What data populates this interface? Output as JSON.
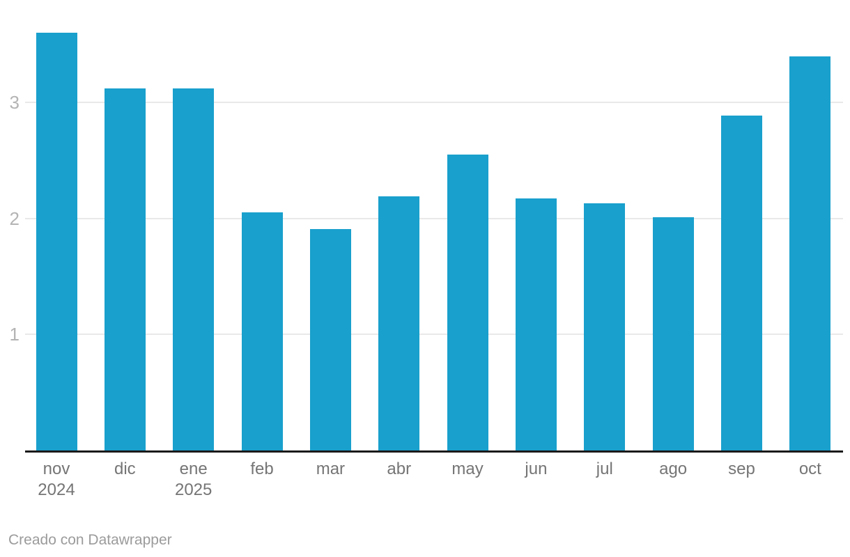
{
  "chart_data": {
    "type": "bar",
    "title": "",
    "xlabel": "",
    "ylabel": "",
    "categories": [
      "nov",
      "dic",
      "ene",
      "feb",
      "mar",
      "abr",
      "may",
      "jun",
      "jul",
      "ago",
      "sep",
      "oct"
    ],
    "sublabels": [
      "2024",
      "",
      "2025",
      "",
      "",
      "",
      "",
      "",
      "",
      "",
      "",
      ""
    ],
    "values": [
      3.6,
      3.12,
      3.12,
      2.05,
      1.91,
      2.19,
      2.55,
      2.17,
      2.13,
      2.01,
      2.89,
      3.4
    ],
    "yticks": [
      1,
      2,
      3
    ],
    "ylim": [
      0,
      3.63
    ],
    "grid": true,
    "legend_position": "none",
    "bar_color": "#19a0cd"
  },
  "colors": {
    "bar": "#19a0cd",
    "gridline": "#e9e9e9",
    "axis_line": "#1a1a1a",
    "y_tick_label": "#b4b4b4",
    "x_tick_label": "#757575",
    "footer_text": "#9b9b9b",
    "background": "#ffffff"
  },
  "footer": {
    "credit": "Creado con Datawrapper"
  }
}
